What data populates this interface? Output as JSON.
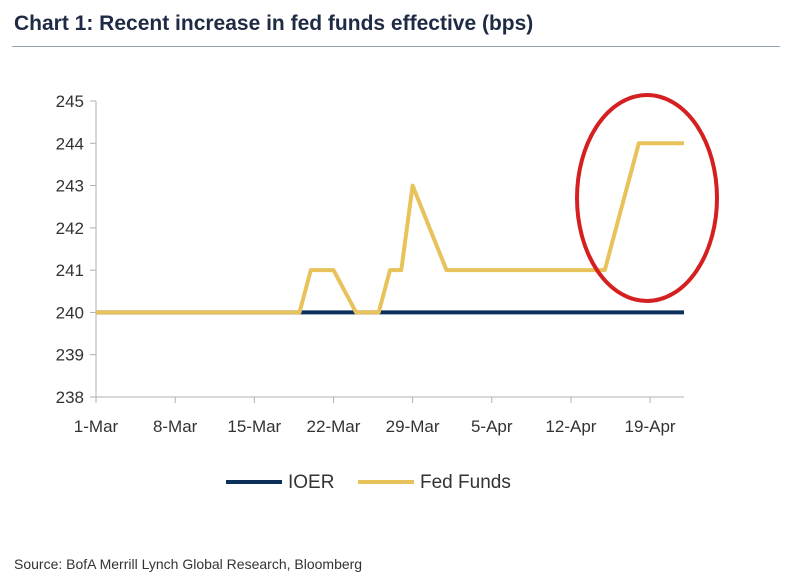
{
  "title": "Chart 1: Recent increase in fed funds effective (bps)",
  "source": "Source: BofA Merrill Lynch Global Research, Bloomberg",
  "colors": {
    "ioer": "#0d2f5c",
    "fed_funds": "#e8c25a",
    "highlight_circle": "#d42020",
    "axis": "#b0b0b0",
    "text": "#333333"
  },
  "chart_data": {
    "type": "line",
    "title": "Chart 1: Recent increase in fed funds effective (bps)",
    "xlabel": "",
    "ylabel": "",
    "ylim": [
      238,
      245
    ],
    "yticks": [
      238,
      239,
      240,
      241,
      242,
      243,
      244,
      245
    ],
    "x_tick_labels": [
      "1-Mar",
      "8-Mar",
      "15-Mar",
      "22-Mar",
      "29-Mar",
      "5-Apr",
      "12-Apr",
      "19-Apr"
    ],
    "x_tick_dates": [
      "2016-03-01",
      "2016-03-08",
      "2016-03-15",
      "2016-03-22",
      "2016-03-29",
      "2016-04-05",
      "2016-04-12",
      "2016-04-19"
    ],
    "grid": false,
    "legend_position": "bottom",
    "annotation": "red ellipse highlighting the rise to 244 in mid/late April",
    "series": [
      {
        "name": "IOER",
        "points": [
          [
            "2016-03-01",
            240
          ],
          [
            "2016-04-22",
            240
          ]
        ]
      },
      {
        "name": "Fed Funds",
        "points": [
          [
            "2016-03-01",
            240
          ],
          [
            "2016-03-19",
            240
          ],
          [
            "2016-03-20",
            241
          ],
          [
            "2016-03-22",
            241
          ],
          [
            "2016-03-24",
            240
          ],
          [
            "2016-03-25",
            240
          ],
          [
            "2016-03-26",
            240
          ],
          [
            "2016-03-27",
            241
          ],
          [
            "2016-03-28",
            241
          ],
          [
            "2016-03-29",
            243
          ],
          [
            "2016-04-01",
            241
          ],
          [
            "2016-04-15",
            241
          ],
          [
            "2016-04-18",
            244
          ],
          [
            "2016-04-22",
            244
          ]
        ]
      }
    ]
  }
}
